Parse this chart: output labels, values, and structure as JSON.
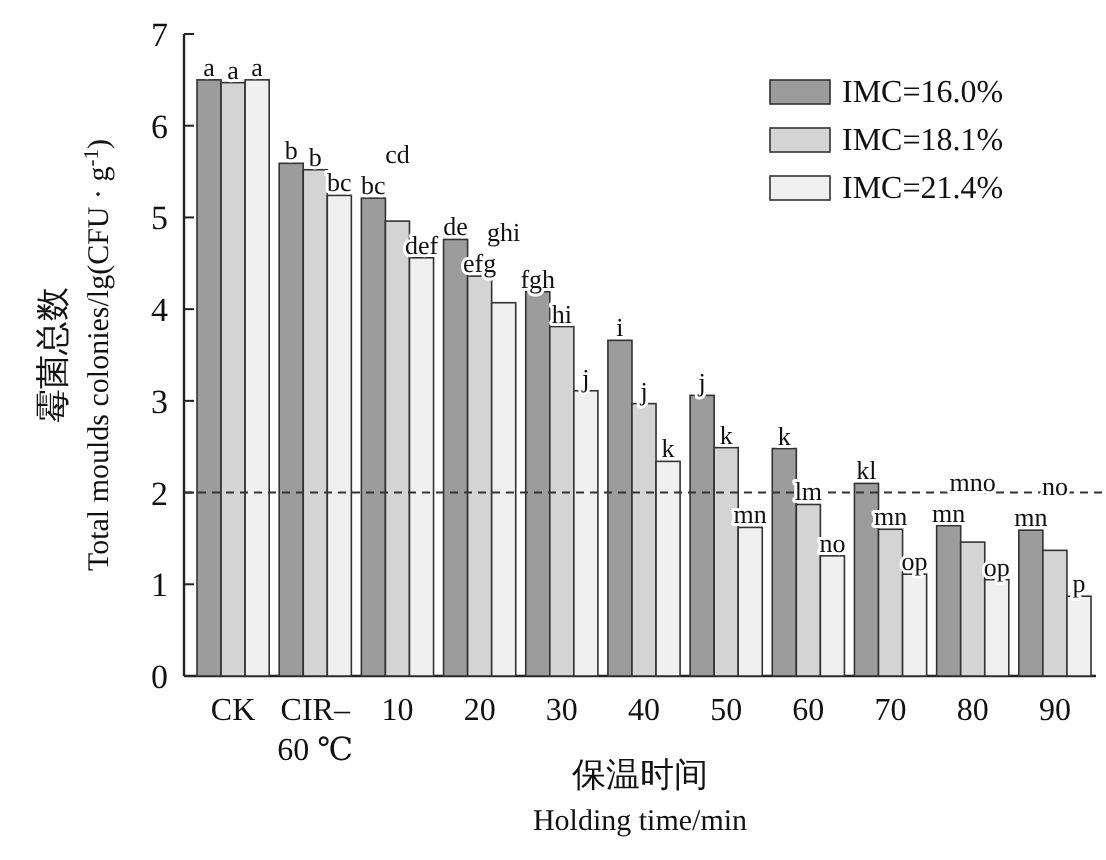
{
  "chart_data": {
    "type": "bar",
    "categories": [
      "CK",
      "CIR– 60 ℃",
      "10",
      "20",
      "30",
      "40",
      "50",
      "60",
      "70",
      "80",
      "90"
    ],
    "xlabel": "保温时间\nHolding time/min",
    "ylabel": "霉菌总数\nTotal moulds colonies/lg(CFU · g$^{-1}$)",
    "ylim": [
      0,
      7
    ],
    "yticks": [
      0,
      1,
      2,
      3,
      4,
      5,
      6,
      7
    ],
    "legend": "top right",
    "ref_lines": [
      {
        "axis": "y",
        "value": 2,
        "color": "#333333",
        "line_style": "dashed"
      }
    ],
    "series": [
      {
        "name": "IMC=16.0%",
        "color": "#9c9c9c",
        "values": [
          6.5,
          5.59,
          5.21,
          4.76,
          4.19,
          3.66,
          3.06,
          2.48,
          2.1,
          1.64,
          1.59
        ],
        "value_labels": [
          "a",
          "b",
          "bc",
          "de",
          "fgh",
          "i",
          "j",
          "k",
          "kl",
          "mn",
          "mn"
        ]
      },
      {
        "name": "IMC=18.1%",
        "color": "#d4d4d4",
        "values": [
          6.47,
          5.52,
          4.96,
          4.36,
          3.81,
          2.97,
          2.49,
          1.87,
          1.6,
          1.46,
          1.37
        ],
        "value_labels": [
          "a",
          "b",
          "cd",
          "efg",
          "hi",
          "j",
          "k",
          "lm",
          "mn",
          "mno",
          "no"
        ]
      },
      {
        "name": "IMC=21.4%",
        "color": "#f0f0f0",
        "values": [
          6.5,
          5.24,
          4.56,
          4.07,
          3.11,
          2.34,
          1.62,
          1.31,
          1.11,
          1.05,
          0.87
        ],
        "value_labels": [
          "a",
          "bc",
          "def",
          "ghi",
          "j",
          "k",
          "mn",
          "no",
          "op",
          "op",
          "p"
        ]
      }
    ]
  }
}
